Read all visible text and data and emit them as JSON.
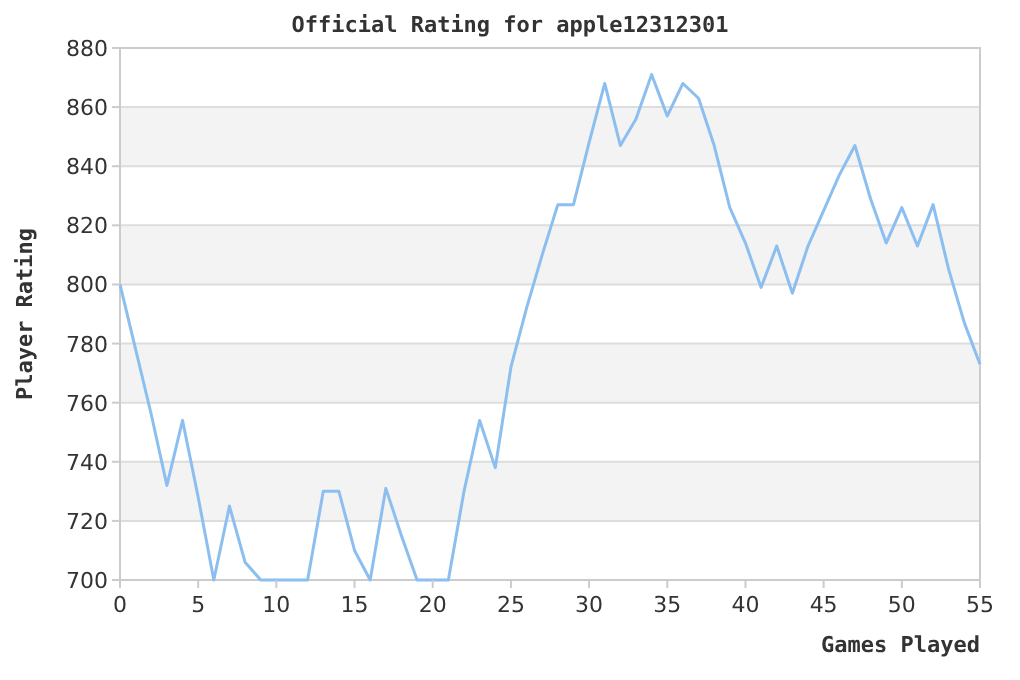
{
  "chart_data": {
    "type": "line",
    "title": "Official Rating for apple12312301",
    "xlabel": "Games Played",
    "ylabel": "Player Rating",
    "x": [
      0,
      1,
      2,
      3,
      4,
      5,
      6,
      7,
      8,
      9,
      10,
      11,
      12,
      13,
      14,
      15,
      16,
      17,
      18,
      19,
      20,
      21,
      22,
      23,
      24,
      25,
      26,
      27,
      28,
      29,
      30,
      31,
      32,
      33,
      34,
      35,
      36,
      37,
      38,
      39,
      40,
      41,
      42,
      43,
      44,
      45,
      46,
      47,
      48,
      49,
      50,
      51,
      52,
      53,
      54,
      55
    ],
    "series": [
      {
        "color": "#8cbff0",
        "values": [
          800,
          778,
          756,
          732,
          754,
          728,
          700,
          725,
          706,
          700,
          700,
          700,
          700,
          730,
          730,
          710,
          700,
          731,
          715,
          700,
          700,
          700,
          730,
          754,
          738,
          772,
          792,
          810,
          827,
          827,
          848,
          868,
          847,
          856,
          871,
          857,
          868,
          863,
          847,
          826,
          814,
          799,
          813,
          797,
          813,
          825,
          837,
          847,
          829,
          814,
          826,
          813,
          827,
          805,
          787,
          773
        ]
      }
    ],
    "xlim": [
      0,
      55
    ],
    "xticks": [
      0,
      5,
      10,
      15,
      20,
      25,
      30,
      35,
      40,
      45,
      50,
      55
    ],
    "ylim": [
      700,
      880
    ],
    "yticks": [
      700,
      720,
      740,
      760,
      780,
      800,
      820,
      840,
      860,
      880
    ],
    "grid": "y",
    "marker": "none",
    "line_style": "solid"
  }
}
